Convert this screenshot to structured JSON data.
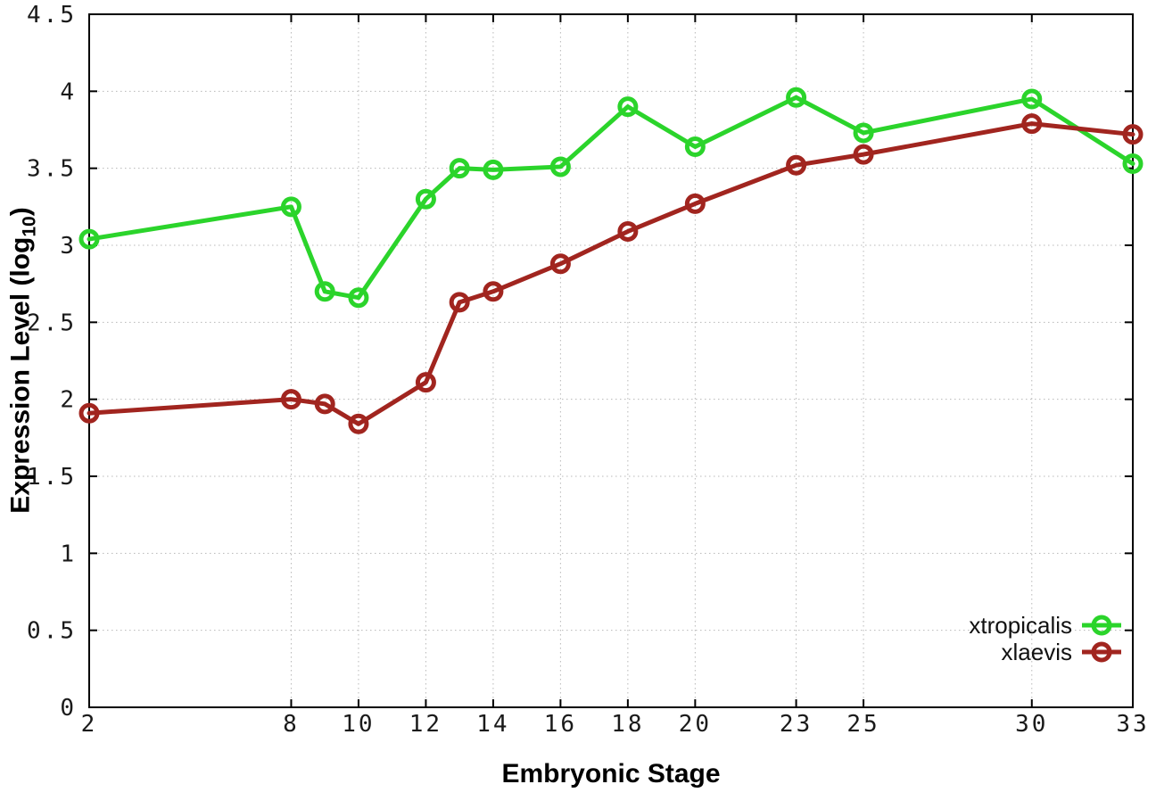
{
  "chart_data": {
    "type": "line",
    "title": "",
    "xlabel": "Embryonic Stage",
    "ylabel": "Expression Level (log10)",
    "ylabel_parts": {
      "prefix": "Expression Level (log",
      "sub": "10",
      "suffix": ")"
    },
    "x": [
      2,
      8,
      9,
      10,
      12,
      13,
      14,
      16,
      18,
      20,
      23,
      25,
      30,
      33
    ],
    "series": [
      {
        "name": "xtropicalis",
        "color": "#2bd42b",
        "values": [
          3.04,
          3.25,
          2.7,
          2.66,
          3.3,
          3.5,
          3.49,
          3.51,
          3.9,
          3.64,
          3.96,
          3.73,
          3.95,
          3.53
        ]
      },
      {
        "name": "xlaevis",
        "color": "#a1251f",
        "values": [
          1.91,
          2.0,
          1.97,
          1.84,
          2.11,
          2.63,
          2.7,
          2.88,
          3.09,
          3.27,
          3.52,
          3.59,
          3.79,
          3.72
        ]
      }
    ],
    "xticks": [
      2,
      8,
      10,
      12,
      14,
      16,
      18,
      20,
      23,
      25,
      30,
      33
    ],
    "yticks": [
      0,
      0.5,
      1,
      1.5,
      2,
      2.5,
      3,
      3.5,
      4,
      4.5
    ],
    "xlim": [
      2,
      33
    ],
    "ylim": [
      0,
      4.5
    ],
    "grid": true,
    "legend_position": "inside-bottom-right",
    "colors": {
      "background": "#ffffff",
      "axis": "#000000",
      "grid": "#b8b8b8",
      "tick_label": "#1a1a1a"
    }
  }
}
